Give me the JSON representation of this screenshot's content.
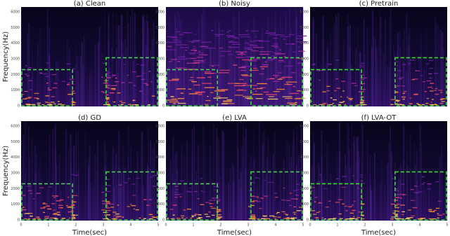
{
  "panels": [
    {
      "title": "(a) Clean"
    },
    {
      "title": "(b) Noisy"
    },
    {
      "title": "(c) Pretrain"
    },
    {
      "title": "(d) GD"
    },
    {
      "title": "(e) LVA"
    },
    {
      "title": "(f) LVA-OT"
    }
  ],
  "y_axis_label": "Frequency(Hz)",
  "x_axis_label": "Time(sec)",
  "yticks": [
    "0",
    "1000",
    "2000",
    "3000",
    "4000",
    "5000",
    "6000"
  ],
  "xticks": [
    "0",
    "1",
    "2",
    "3",
    "4",
    "5"
  ]
}
